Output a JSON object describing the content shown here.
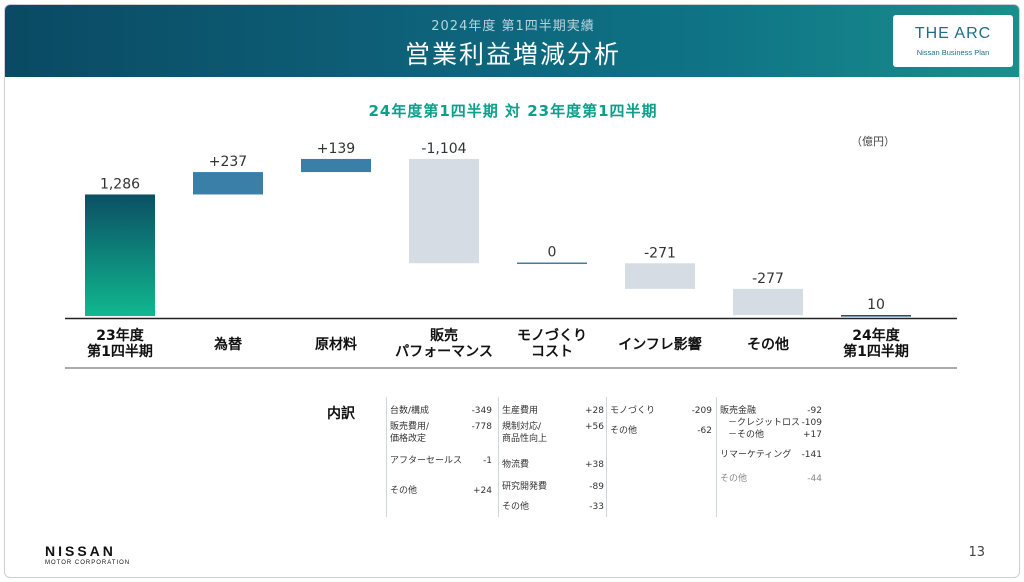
{
  "header": {
    "subtitle": "2024年度 第1四半期実績",
    "title": "営業利益増減分析",
    "logo_main": "THE ARC",
    "logo_sub": "Nissan Business Plan"
  },
  "chart_data": {
    "type": "bar",
    "subtype": "waterfall",
    "title": "24年度第1四半期 対 23年度第1四半期",
    "unit": "（億円）",
    "ylim": [
      0,
      1700
    ],
    "categories": [
      [
        "23年度",
        "第1四半期"
      ],
      [
        "為替"
      ],
      [
        "原材料"
      ],
      [
        "販売",
        "パフォーマンス"
      ],
      [
        "モノづくり",
        "コスト"
      ],
      [
        "インフレ影響"
      ],
      [
        "その他"
      ],
      [
        "24年度",
        "第1四半期"
      ]
    ],
    "values": [
      1286,
      237,
      139,
      -1104,
      0,
      -271,
      -277,
      10
    ],
    "value_labels": [
      "1,286",
      "+237",
      "+139",
      "-1,104",
      "0",
      "-271",
      "-277",
      "10"
    ],
    "bar_kind": [
      "total",
      "delta",
      "delta",
      "delta",
      "delta",
      "delta",
      "delta",
      "total"
    ],
    "colors": {
      "total_top": "#0b4f64",
      "total_bottom": "#10b88f",
      "positive": "#3a7fa8",
      "negative": "#d5dce3",
      "end_total": "#0b4f64"
    }
  },
  "breakdown": {
    "label": "内訳",
    "columns": [
      [
        {
          "label": "台数/構成",
          "value": "-349"
        },
        {
          "label": "販売費用/\n価格改定",
          "value": "-778"
        },
        {
          "label": "アフターセールス",
          "value": "-1"
        },
        {
          "label": "その他",
          "value": "+24"
        }
      ],
      [
        {
          "label": "生産費用",
          "value": "+28"
        },
        {
          "label": "規制対応/\n商品性向上",
          "value": "+56"
        },
        {
          "label": "物流費",
          "value": "+38"
        },
        {
          "label": "研究開発費",
          "value": "-89"
        },
        {
          "label": "その他",
          "value": "-33"
        }
      ],
      [
        {
          "label": "モノづくり",
          "value": "-209"
        },
        {
          "label": "その他",
          "value": "-62"
        }
      ],
      [
        {
          "label": "販売金融",
          "value": "-92"
        },
        {
          "label": "－クレジットロス",
          "value": "-109"
        },
        {
          "label": "－その他",
          "value": "+17"
        },
        {
          "label": "リマーケティング",
          "value": "-141"
        },
        {
          "label": "その他",
          "value": "-44"
        }
      ]
    ]
  },
  "footer": {
    "brand": "NISSAN",
    "brand_sub": "MOTOR CORPORATION",
    "page": "13"
  }
}
